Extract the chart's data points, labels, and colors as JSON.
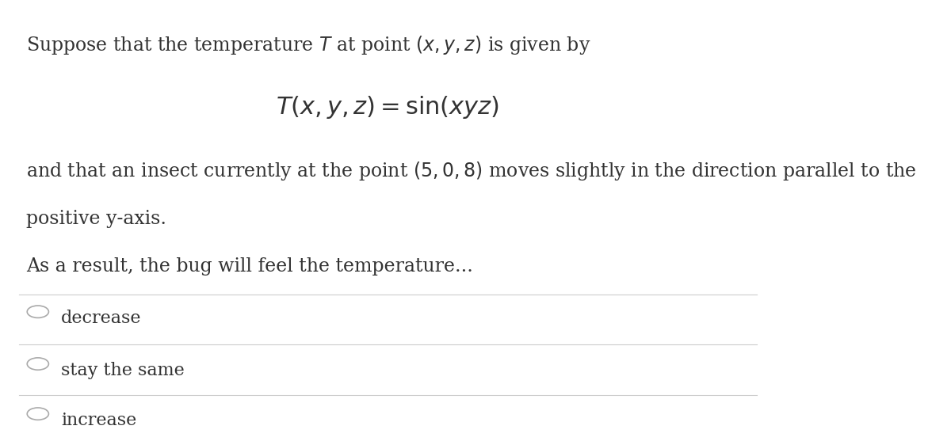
{
  "bg_color": "#ffffff",
  "text_color": "#333333",
  "line_color": "#cccccc",
  "line1": "Suppose that the temperature $\\mathit{T}$ at point $(x, y, z)$ is given by",
  "line2": "$T(x, y, z) = \\sin(xyz)$",
  "line3": "and that an insect currently at the point $(5, 0, 8)$ moves slightly in the direction parallel to the",
  "line4": "positive y-axis.",
  "line5": "As a result, the bug will feel the temperature...",
  "options": [
    "decrease",
    "stay the same",
    "increase"
  ],
  "font_size_body": 17,
  "font_size_eq": 22,
  "font_size_options": 16,
  "figsize": [
    12.0,
    5.57
  ],
  "dpi": 100
}
